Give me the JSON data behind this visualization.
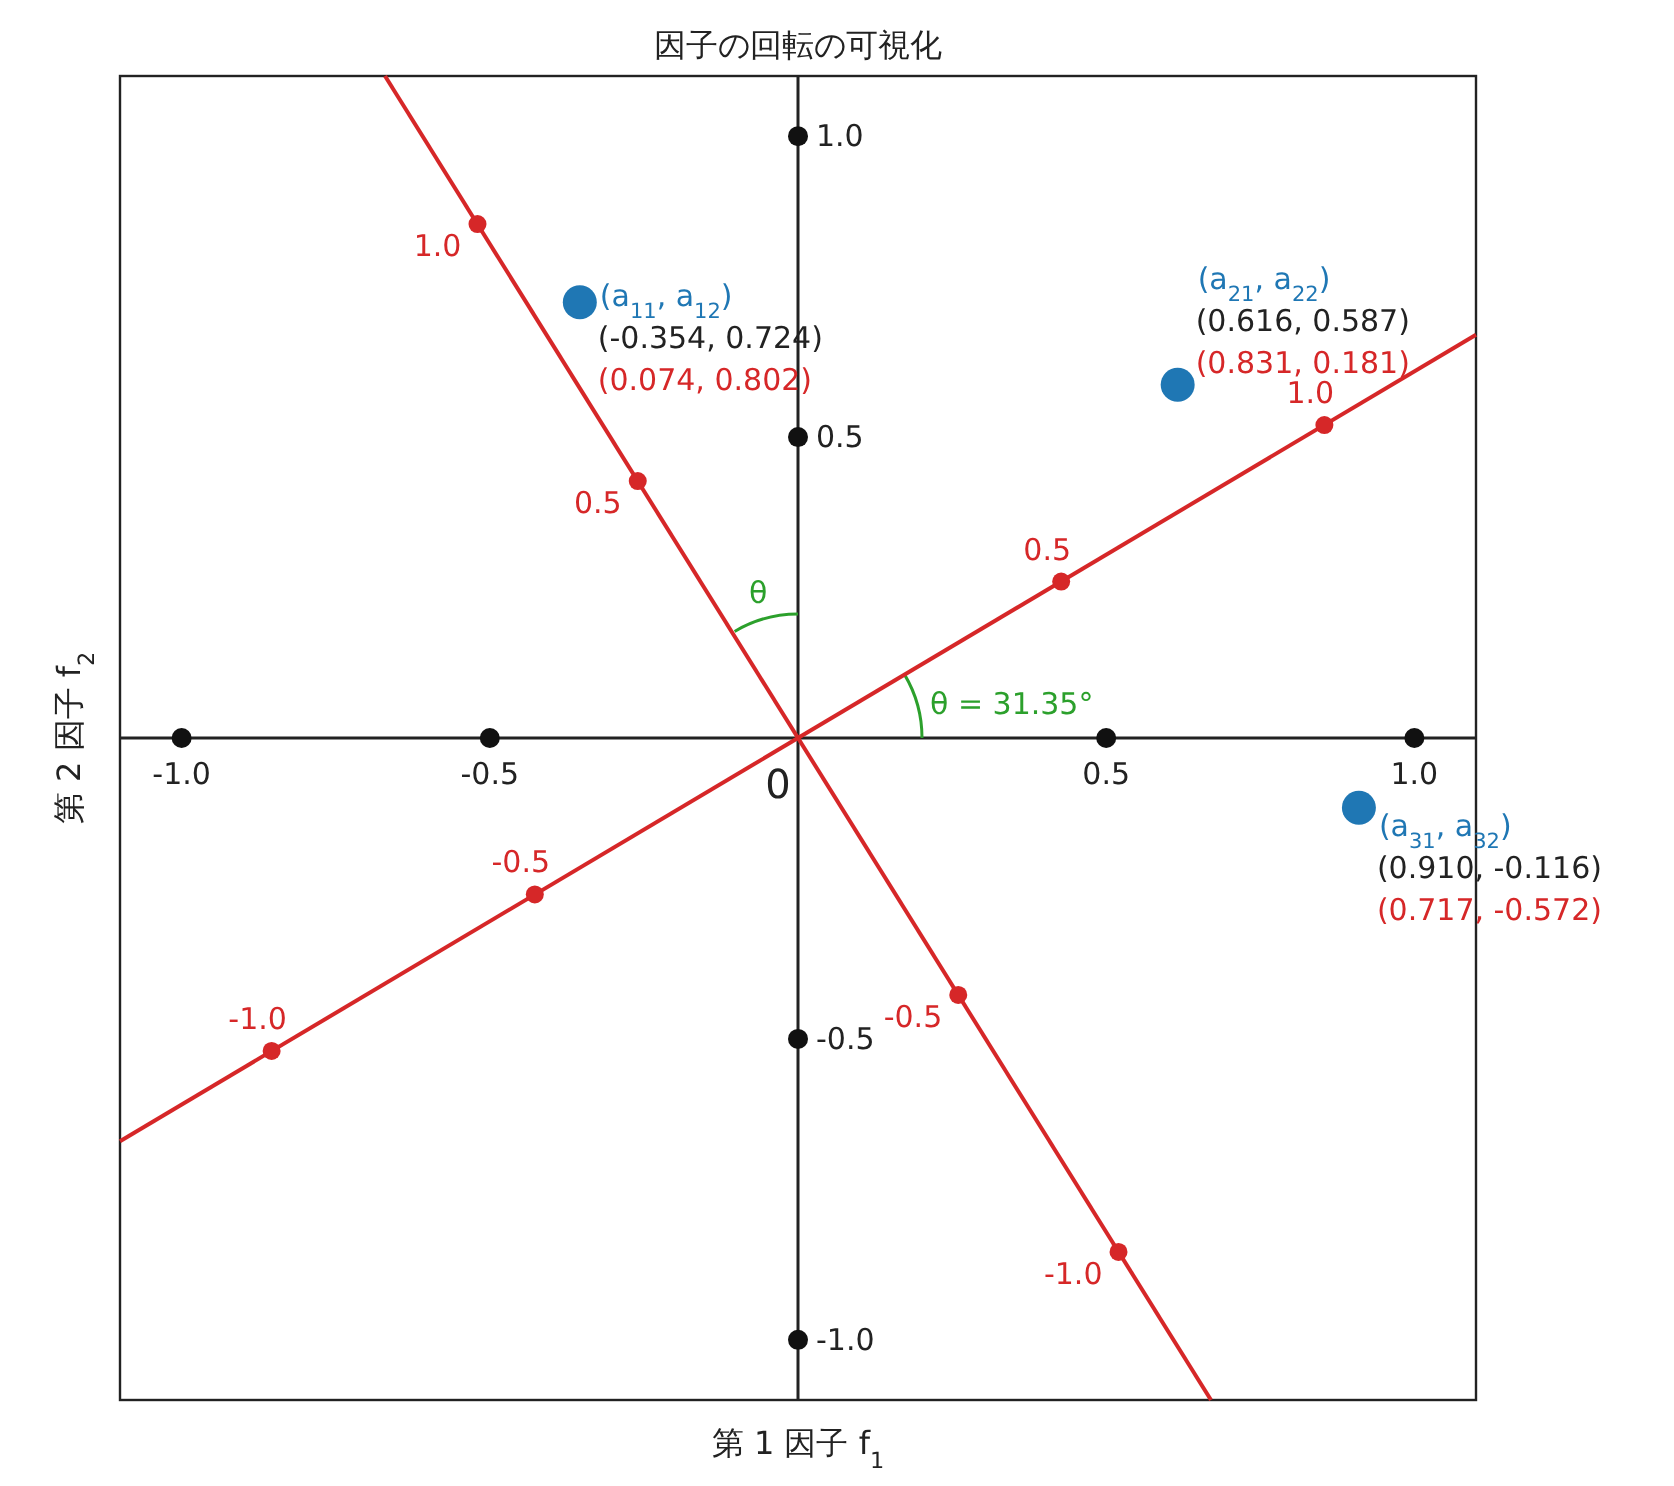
{
  "chart_data": {
    "type": "scatter",
    "title": "因子の回転の可視化",
    "xlabel": "第 1 因子 f$_{1}$",
    "ylabel": "第 2 因子 f$_{2}$",
    "xlim": [
      -1.1,
      1.1
    ],
    "ylim": [
      -1.1,
      1.1
    ],
    "xticks": [
      {
        "value": -1,
        "label": "-1.0"
      },
      {
        "value": -0.5,
        "label": "-0.5"
      },
      {
        "value": 0.5,
        "label": "0.5"
      },
      {
        "value": 1,
        "label": "1.0"
      }
    ],
    "yticks": [
      {
        "value": -1,
        "label": "-1.0"
      },
      {
        "value": -0.5,
        "label": "-0.5"
      },
      {
        "value": 0.5,
        "label": "0.5"
      },
      {
        "value": 1,
        "label": "1.0"
      }
    ],
    "series": [
      {
        "type": "line",
        "color": "#d62728",
        "marker": "none",
        "x": [
          -1.1,
          1.1
        ],
        "values": [
          -0.67,
          0.67
        ]
      },
      {
        "type": "line",
        "color": "#d62728",
        "marker": "none",
        "x": [
          -0.67,
          0.67
        ],
        "values": [
          1.1,
          -1.1
        ]
      },
      {
        "color": "#111111",
        "marker": "circle",
        "x": [
          -1,
          -0.5,
          0.5,
          1,
          0,
          0,
          0,
          0
        ],
        "values": [
          0,
          0,
          0,
          0,
          -1,
          -0.5,
          0.5,
          1
        ]
      },
      {
        "color": "#d62728",
        "marker": "circle",
        "x": [
          0.854,
          0.427,
          -0.427,
          -0.854
        ],
        "values": [
          0.52,
          0.26,
          -0.26,
          -0.52
        ]
      },
      {
        "color": "#d62728",
        "marker": "circle",
        "x": [
          -0.52,
          -0.26,
          0.26,
          0.52
        ],
        "values": [
          0.854,
          0.427,
          -0.427,
          -0.854
        ]
      },
      {
        "color": "#1f77b4",
        "marker": "circle",
        "x": [
          -0.354,
          0.616,
          0.91
        ],
        "values": [
          0.724,
          0.587,
          -0.116
        ],
        "value_labels": [
          "(a$_{11}$, a$_{12}$)",
          "(a$_{21}$, a$_{22}$)",
          "(a$_{31}$, a$_{32}$)"
        ]
      }
    ],
    "annotations": [
      {
        "text": "(-0.354, 0.724)",
        "x": -0.354,
        "y": 0.724
      },
      {
        "text": "(0.616, 0.587)",
        "x": 0.616,
        "y": 0.587
      },
      {
        "text": "(0.910, -0.116)",
        "x": 0.91,
        "y": -0.116
      },
      {
        "text": "(0.074, 0.802)",
        "x": -0.354,
        "y": 0.724
      },
      {
        "text": "(0.831, 0.181)",
        "x": 0.616,
        "y": 0.587
      },
      {
        "text": "(0.717, -0.572)",
        "x": 0.91,
        "y": -0.116
      },
      {
        "text": "1.0",
        "x": 0.854,
        "y": 0.52
      },
      {
        "text": "0.5",
        "x": 0.427,
        "y": 0.26
      },
      {
        "text": "-0.5",
        "x": -0.427,
        "y": -0.26
      },
      {
        "text": "-1.0",
        "x": -0.854,
        "y": -0.52
      },
      {
        "text": "1.0",
        "x": -0.52,
        "y": 0.854
      },
      {
        "text": "0.5",
        "x": -0.26,
        "y": 0.427
      },
      {
        "text": "-0.5",
        "x": 0.26,
        "y": -0.427
      },
      {
        "text": "-1.0",
        "x": 0.52,
        "y": -0.854
      },
      "θ",
      "θ = 31.35°",
      "0"
    ]
  }
}
